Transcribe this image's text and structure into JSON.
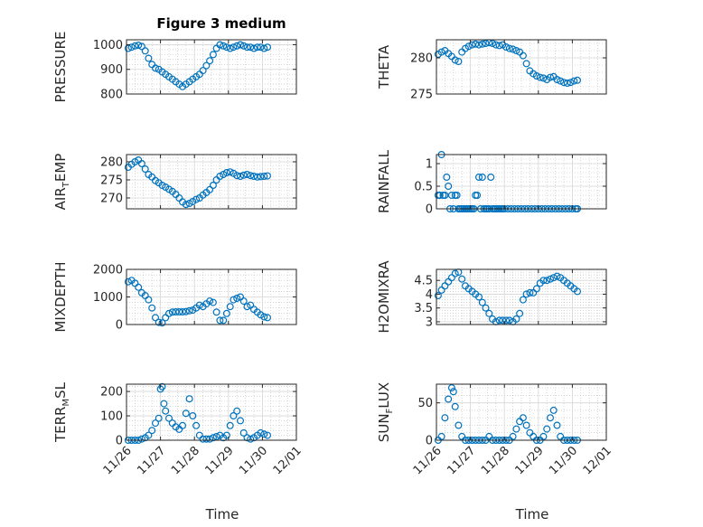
{
  "figure_title": "Figure 3 medium",
  "x_axis_label": "Time",
  "chart_data": [
    {
      "type": "scatter",
      "ylabel": "PRESSURE",
      "xlim": [
        0,
        5
      ],
      "ylim": [
        800,
        1020
      ],
      "yticks": [
        800,
        900,
        1000
      ],
      "x": [
        0.05,
        0.15,
        0.25,
        0.35,
        0.45,
        0.55,
        0.65,
        0.75,
        0.85,
        0.95,
        1.05,
        1.15,
        1.25,
        1.35,
        1.45,
        1.55,
        1.65,
        1.75,
        1.85,
        1.95,
        2.05,
        2.15,
        2.25,
        2.35,
        2.45,
        2.55,
        2.65,
        2.75,
        2.85,
        2.95,
        3.05,
        3.15,
        3.25,
        3.35,
        3.45,
        3.55,
        3.65,
        3.75,
        3.85,
        3.95,
        4.05,
        4.15
      ],
      "y": [
        985,
        990,
        995,
        998,
        993,
        975,
        945,
        920,
        905,
        900,
        890,
        880,
        870,
        860,
        850,
        840,
        830,
        840,
        850,
        860,
        870,
        880,
        895,
        915,
        935,
        960,
        985,
        1000,
        995,
        990,
        985,
        990,
        995,
        1000,
        995,
        990,
        990,
        985,
        990,
        990,
        985,
        990
      ]
    },
    {
      "type": "scatter",
      "ylabel": "THETA",
      "xlim": [
        0,
        5
      ],
      "ylim": [
        275,
        282.5
      ],
      "yticks": [
        275,
        280
      ],
      "x": [
        0.05,
        0.15,
        0.25,
        0.35,
        0.45,
        0.55,
        0.65,
        0.75,
        0.85,
        0.95,
        1.05,
        1.15,
        1.25,
        1.35,
        1.45,
        1.55,
        1.65,
        1.75,
        1.85,
        1.95,
        2.05,
        2.15,
        2.25,
        2.35,
        2.45,
        2.55,
        2.65,
        2.75,
        2.85,
        2.95,
        3.05,
        3.15,
        3.25,
        3.35,
        3.45,
        3.55,
        3.65,
        3.75,
        3.85,
        3.95,
        4.05,
        4.15
      ],
      "y": [
        280.5,
        280.8,
        281.0,
        280.6,
        280.2,
        279.7,
        279.5,
        280.8,
        281.3,
        281.6,
        281.8,
        281.9,
        281.8,
        281.9,
        282.0,
        282.1,
        282.0,
        281.8,
        281.7,
        281.8,
        281.5,
        281.3,
        281.2,
        281.0,
        280.8,
        280.3,
        279.2,
        278.2,
        277.8,
        277.5,
        277.3,
        277.2,
        277.0,
        277.3,
        277.4,
        277.0,
        276.8,
        276.6,
        276.5,
        276.6,
        276.8,
        276.9
      ]
    },
    {
      "type": "scatter",
      "ylabel": "AIR_TEMP",
      "xlim": [
        0,
        5
      ],
      "ylim": [
        267,
        282
      ],
      "yticks": [
        270,
        275,
        280
      ],
      "x": [
        0.05,
        0.15,
        0.25,
        0.35,
        0.45,
        0.55,
        0.65,
        0.75,
        0.85,
        0.95,
        1.05,
        1.15,
        1.25,
        1.35,
        1.45,
        1.55,
        1.65,
        1.75,
        1.85,
        1.95,
        2.05,
        2.15,
        2.25,
        2.35,
        2.45,
        2.55,
        2.65,
        2.75,
        2.85,
        2.95,
        3.05,
        3.15,
        3.25,
        3.35,
        3.45,
        3.55,
        3.65,
        3.75,
        3.85,
        3.95,
        4.05,
        4.15
      ],
      "y": [
        278.5,
        279.3,
        280.0,
        280.5,
        279.5,
        278.0,
        276.5,
        275.8,
        274.8,
        274.2,
        273.5,
        273.0,
        272.4,
        271.8,
        271.0,
        270.0,
        268.9,
        268.2,
        268.5,
        269.0,
        269.6,
        270.0,
        270.8,
        271.5,
        272.3,
        273.5,
        275.0,
        276.0,
        276.5,
        277.0,
        277.2,
        276.8,
        276.2,
        276.0,
        276.3,
        276.5,
        276.2,
        276.0,
        275.8,
        275.9,
        276.0,
        276.1
      ]
    },
    {
      "type": "scatter",
      "ylabel": "RAINFALL",
      "xlim": [
        0,
        5
      ],
      "ylim": [
        0,
        1.2
      ],
      "yticks": [
        0,
        0.5,
        1
      ],
      "x": [
        0.05,
        0.1,
        0.15,
        0.2,
        0.25,
        0.3,
        0.35,
        0.4,
        0.45,
        0.5,
        0.55,
        0.6,
        0.65,
        0.7,
        0.75,
        0.8,
        0.85,
        0.9,
        0.95,
        1.0,
        1.05,
        1.1,
        1.15,
        1.2,
        1.25,
        1.3,
        1.35,
        1.4,
        1.45,
        1.5,
        1.55,
        1.6,
        1.65,
        1.7,
        1.75,
        1.8,
        1.85,
        1.9,
        1.95,
        2.0,
        2.1,
        2.2,
        2.3,
        2.4,
        2.5,
        2.6,
        2.7,
        2.8,
        2.9,
        3.0,
        3.1,
        3.2,
        3.3,
        3.4,
        3.5,
        3.6,
        3.7,
        3.8,
        3.9,
        4.0,
        4.1,
        4.15
      ],
      "y": [
        0.3,
        0.3,
        1.2,
        0.3,
        0.3,
        0.7,
        0.5,
        0,
        0.3,
        0,
        0.3,
        0.3,
        0,
        0,
        0,
        0,
        0,
        0,
        0,
        0,
        0,
        0,
        0.3,
        0.3,
        0.7,
        0,
        0.7,
        0,
        0,
        0,
        0,
        0.7,
        0,
        0,
        0,
        0,
        0,
        0,
        0,
        0,
        0,
        0,
        0,
        0,
        0,
        0,
        0,
        0,
        0,
        0,
        0,
        0,
        0,
        0,
        0,
        0,
        0,
        0,
        0,
        0,
        0,
        0
      ]
    },
    {
      "type": "scatter",
      "ylabel": "MIXDEPTH",
      "xlim": [
        0,
        5
      ],
      "ylim": [
        0,
        2000
      ],
      "yticks": [
        0,
        1000,
        2000
      ],
      "x": [
        0.05,
        0.15,
        0.25,
        0.35,
        0.45,
        0.55,
        0.65,
        0.75,
        0.85,
        0.95,
        1.05,
        1.15,
        1.25,
        1.35,
        1.45,
        1.55,
        1.65,
        1.75,
        1.85,
        1.95,
        2.05,
        2.15,
        2.25,
        2.35,
        2.45,
        2.55,
        2.65,
        2.75,
        2.85,
        2.95,
        3.05,
        3.15,
        3.25,
        3.35,
        3.45,
        3.55,
        3.65,
        3.75,
        3.85,
        3.95,
        4.05,
        4.15
      ],
      "y": [
        1550,
        1600,
        1500,
        1350,
        1150,
        1050,
        900,
        600,
        250,
        80,
        60,
        250,
        400,
        450,
        460,
        460,
        460,
        470,
        500,
        520,
        600,
        700,
        650,
        750,
        850,
        800,
        450,
        150,
        150,
        400,
        650,
        900,
        950,
        1000,
        850,
        650,
        700,
        550,
        450,
        350,
        280,
        250
      ]
    },
    {
      "type": "scatter",
      "ylabel": "H2OMIXRA",
      "xlim": [
        0,
        5
      ],
      "ylim": [
        2.9,
        4.9
      ],
      "yticks": [
        3,
        3.5,
        4,
        4.5
      ],
      "x": [
        0.05,
        0.15,
        0.25,
        0.35,
        0.45,
        0.55,
        0.65,
        0.75,
        0.85,
        0.95,
        1.05,
        1.15,
        1.25,
        1.35,
        1.45,
        1.55,
        1.65,
        1.75,
        1.85,
        1.95,
        2.05,
        2.15,
        2.25,
        2.35,
        2.45,
        2.55,
        2.65,
        2.75,
        2.85,
        2.95,
        3.05,
        3.15,
        3.25,
        3.35,
        3.45,
        3.55,
        3.65,
        3.75,
        3.85,
        3.95,
        4.05,
        4.15
      ],
      "y": [
        3.95,
        4.15,
        4.3,
        4.45,
        4.6,
        4.75,
        4.8,
        4.55,
        4.3,
        4.2,
        4.1,
        4.0,
        3.9,
        3.7,
        3.5,
        3.3,
        3.1,
        3.0,
        3.05,
        3.05,
        3.05,
        3.05,
        3.0,
        3.1,
        3.3,
        3.8,
        4.0,
        4.05,
        4.05,
        4.2,
        4.4,
        4.5,
        4.5,
        4.55,
        4.6,
        4.65,
        4.6,
        4.5,
        4.4,
        4.3,
        4.2,
        4.1
      ]
    },
    {
      "type": "scatter",
      "ylabel": "TERR_MSL",
      "xlim": [
        0,
        5
      ],
      "ylim": [
        0,
        230
      ],
      "yticks": [
        0,
        100,
        200
      ],
      "x": [
        0.05,
        0.15,
        0.25,
        0.35,
        0.45,
        0.55,
        0.65,
        0.75,
        0.85,
        0.95,
        1.0,
        1.05,
        1.1,
        1.15,
        1.25,
        1.35,
        1.45,
        1.55,
        1.65,
        1.75,
        1.85,
        1.95,
        2.05,
        2.15,
        2.25,
        2.35,
        2.45,
        2.55,
        2.65,
        2.75,
        2.85,
        2.95,
        3.05,
        3.15,
        3.25,
        3.35,
        3.45,
        3.55,
        3.65,
        3.75,
        3.85,
        3.95,
        4.05,
        4.15
      ],
      "y": [
        0,
        0,
        0,
        0,
        5,
        10,
        20,
        40,
        70,
        90,
        210,
        220,
        150,
        120,
        90,
        70,
        55,
        45,
        60,
        110,
        170,
        100,
        60,
        20,
        5,
        5,
        5,
        10,
        15,
        20,
        10,
        20,
        60,
        100,
        120,
        80,
        30,
        10,
        5,
        10,
        20,
        30,
        25,
        20
      ]
    },
    {
      "type": "scatter",
      "ylabel": "SUN_FLUX",
      "xlim": [
        0,
        5
      ],
      "ylim": [
        0,
        75
      ],
      "yticks": [
        0,
        50
      ],
      "x": [
        0.05,
        0.15,
        0.25,
        0.35,
        0.45,
        0.5,
        0.55,
        0.65,
        0.75,
        0.85,
        0.95,
        1.05,
        1.15,
        1.25,
        1.35,
        1.45,
        1.55,
        1.65,
        1.75,
        1.85,
        1.95,
        2.05,
        2.15,
        2.25,
        2.35,
        2.45,
        2.55,
        2.65,
        2.75,
        2.85,
        2.95,
        3.05,
        3.15,
        3.25,
        3.35,
        3.45,
        3.55,
        3.65,
        3.75,
        3.85,
        3.95,
        4.05,
        4.15
      ],
      "y": [
        0,
        5,
        30,
        55,
        70,
        65,
        45,
        20,
        5,
        0,
        0,
        0,
        0,
        0,
        0,
        0,
        5,
        0,
        0,
        0,
        0,
        0,
        0,
        5,
        15,
        25,
        30,
        20,
        10,
        5,
        0,
        0,
        5,
        15,
        30,
        40,
        20,
        5,
        0,
        0,
        0,
        0,
        0
      ]
    }
  ],
  "x_ticks": {
    "values": [
      0,
      1,
      2,
      3,
      4,
      5
    ],
    "labels": [
      "11/26",
      "11/27",
      "11/28",
      "11/29",
      "11/30",
      "12/01"
    ]
  },
  "colors": {
    "marker": "#0072BD",
    "axis": "#262626",
    "grid": "#d7d7d7",
    "minor_grid": "#bdbdbd"
  }
}
